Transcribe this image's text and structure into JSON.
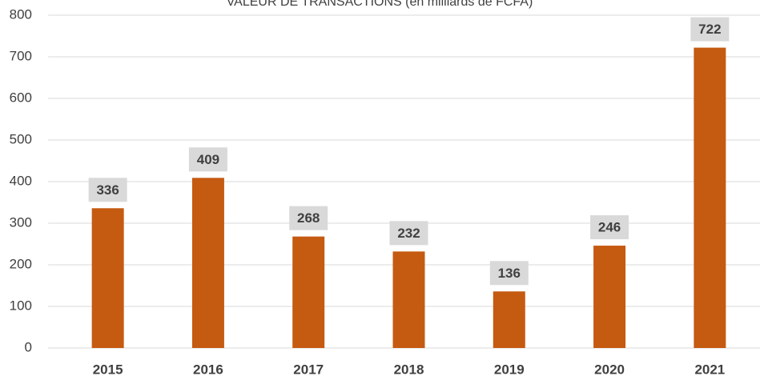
{
  "chart_data": {
    "type": "bar",
    "title": "VALEUR DE TRANSACTIONS (en milliards de FCFA)",
    "categories": [
      "2015",
      "2016",
      "2017",
      "2018",
      "2019",
      "2020",
      "2021"
    ],
    "values": [
      336,
      409,
      268,
      232,
      136,
      246,
      722
    ],
    "color": "#c55a11",
    "ylim": [
      0,
      800
    ],
    "yticks": [
      0,
      100,
      200,
      300,
      400,
      500,
      600,
      700,
      800
    ],
    "grid": true
  }
}
